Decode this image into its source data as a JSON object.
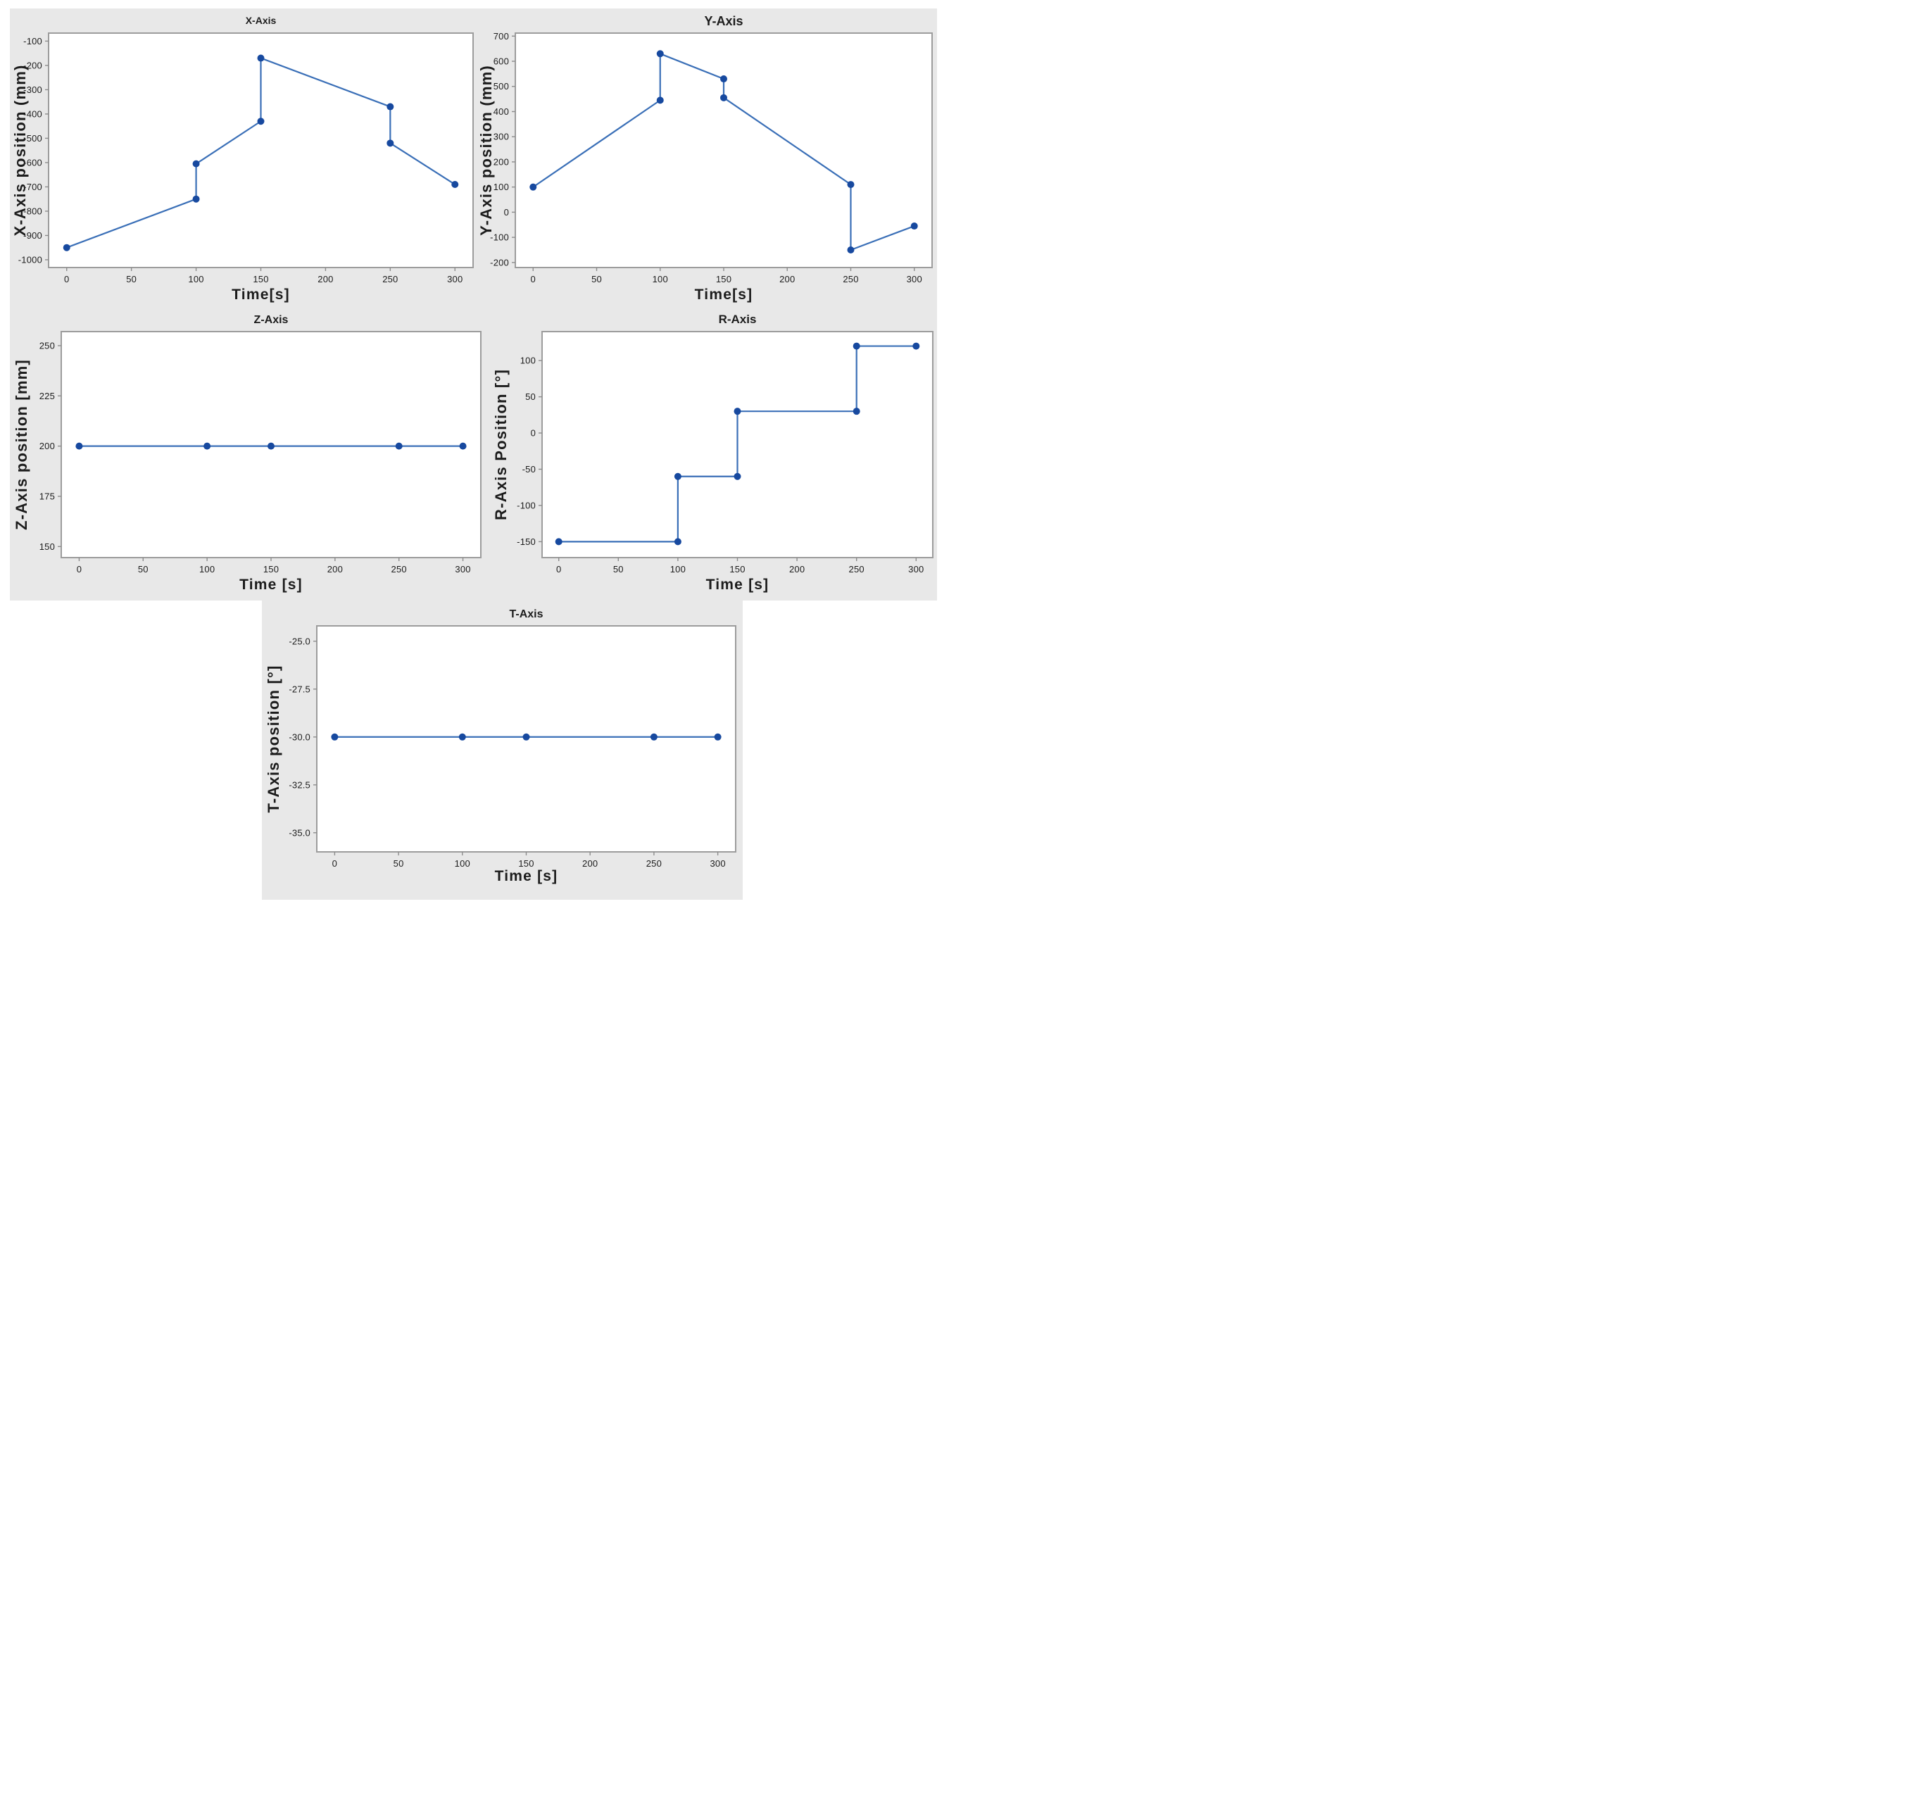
{
  "page": {
    "background": "#ffffff",
    "panel_color": "#e8e8e8"
  },
  "colors": {
    "line": "#3a6fb7",
    "marker": "#17499f",
    "plot_border": "#9c9c9c",
    "plot_bg": "#ffffff",
    "tick_mark": "#8c8c8c",
    "text": "#1c1c1c"
  },
  "chart_data": [
    {
      "type": "line",
      "title": "X-Axis",
      "xlabel": "Time[s]",
      "ylabel": "X-Axis position (mm)",
      "x": [
        0,
        100,
        100,
        150,
        150,
        250,
        250,
        300
      ],
      "y": [
        -950,
        -750,
        -605,
        -430,
        -170,
        -370,
        -520,
        -690
      ],
      "xticks": [
        0,
        50,
        100,
        150,
        200,
        250,
        300
      ],
      "xtick_labels": [
        "0",
        "50",
        "100",
        "150",
        "200",
        "250",
        "300"
      ],
      "yticks": [
        -100,
        -200,
        -300,
        -400,
        -500,
        -600,
        -700,
        -800,
        -900,
        -1000
      ],
      "ytick_labels": [
        "-100",
        "-200",
        "-300",
        "-400",
        "-500",
        "-600",
        "-700",
        "-800",
        "-900",
        "-1000"
      ],
      "xlim": [
        -14,
        314
      ],
      "ylim": [
        -1032,
        -67
      ],
      "grid": false,
      "legend": "none"
    },
    {
      "type": "line",
      "title": "Y-Axis",
      "xlabel": "Time[s]",
      "ylabel": "Y-Axis position (mm)",
      "x": [
        0,
        100,
        100,
        150,
        150,
        250,
        250,
        300
      ],
      "y": [
        100,
        445,
        630,
        530,
        455,
        110,
        -150,
        -55
      ],
      "xticks": [
        0,
        50,
        100,
        150,
        200,
        250,
        300
      ],
      "xtick_labels": [
        "0",
        "50",
        "100",
        "150",
        "200",
        "250",
        "300"
      ],
      "yticks": [
        700,
        600,
        500,
        400,
        300,
        200,
        100,
        0,
        -100,
        -200
      ],
      "ytick_labels": [
        "700",
        "600",
        "500",
        "400",
        "300",
        "200",
        "100",
        "0",
        "-100",
        "-200"
      ],
      "xlim": [
        -14,
        314
      ],
      "ylim": [
        -220,
        712
      ],
      "grid": false,
      "legend": "none"
    },
    {
      "type": "line",
      "title": "Z-Axis",
      "xlabel": "Time [s]",
      "ylabel": "Z-Axis position [mm]",
      "x": [
        0,
        100,
        150,
        250,
        300
      ],
      "y": [
        200,
        200,
        200,
        200,
        200
      ],
      "xticks": [
        0,
        50,
        100,
        150,
        200,
        250,
        300
      ],
      "xtick_labels": [
        "0",
        "50",
        "100",
        "150",
        "200",
        "250",
        "300"
      ],
      "yticks": [
        250,
        225,
        200,
        175,
        150
      ],
      "ytick_labels": [
        "250",
        "225",
        "200",
        "175",
        "150"
      ],
      "xlim": [
        -14,
        314
      ],
      "ylim": [
        144.5,
        257
      ],
      "grid": false,
      "legend": "none"
    },
    {
      "type": "line",
      "title": "R-Axis",
      "xlabel": "Time [s]",
      "ylabel": "R-Axis Position [°]",
      "x": [
        0,
        100,
        100,
        150,
        150,
        250,
        250,
        300
      ],
      "y": [
        -150,
        -150,
        -60,
        -60,
        30,
        30,
        120,
        120
      ],
      "xticks": [
        0,
        50,
        100,
        150,
        200,
        250,
        300
      ],
      "xtick_labels": [
        "0",
        "50",
        "100",
        "150",
        "200",
        "250",
        "300"
      ],
      "yticks": [
        100,
        50,
        0,
        -50,
        -100,
        -150
      ],
      "ytick_labels": [
        "100",
        "50",
        "0",
        "-50",
        "-100",
        "-150"
      ],
      "xlim": [
        -14,
        314
      ],
      "ylim": [
        -172,
        140
      ],
      "grid": false,
      "legend": "none"
    },
    {
      "type": "line",
      "title": "T-Axis",
      "xlabel": "Time [s]",
      "ylabel": "T-Axis position [°]",
      "x": [
        0,
        100,
        150,
        250,
        300
      ],
      "y": [
        -30,
        -30,
        -30,
        -30,
        -30
      ],
      "xticks": [
        0,
        50,
        100,
        150,
        200,
        250,
        300
      ],
      "xtick_labels": [
        "0",
        "50",
        "100",
        "150",
        "200",
        "250",
        "300"
      ],
      "yticks": [
        -25,
        -27.5,
        -30,
        -32.5,
        -35
      ],
      "ytick_labels": [
        "-25.0",
        "-27.5",
        "-30.0",
        "-32.5",
        "-35.0"
      ],
      "xlim": [
        -14,
        314
      ],
      "ylim": [
        -36,
        -24.2
      ],
      "grid": false,
      "legend": "none"
    }
  ]
}
